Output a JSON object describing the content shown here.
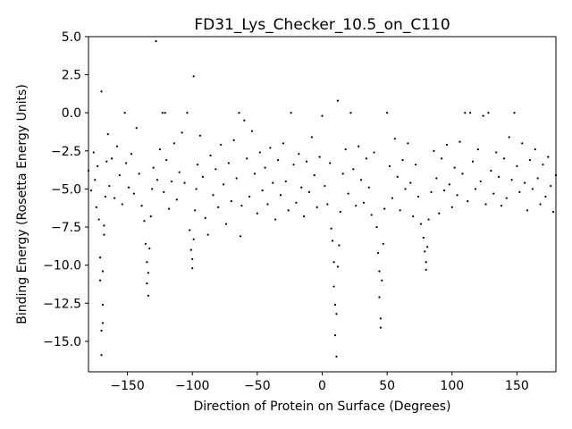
{
  "chart_data": {
    "type": "scatter",
    "title": "FD31_Lys_Checker_10.5_on_C110",
    "xlabel": "Direction of Protein on Surface (Degrees)",
    "ylabel": "Binding Energy (Rosetta Energy Units)",
    "xlim": [
      -180,
      180
    ],
    "ylim": [
      -17,
      5
    ],
    "xticks": [
      -150,
      -100,
      -50,
      0,
      50,
      100,
      150
    ],
    "xtick_labels": [
      "−150",
      "−100",
      "−50",
      "0",
      "50",
      "100",
      "150"
    ],
    "yticks": [
      5.0,
      2.5,
      0.0,
      -2.5,
      -5.0,
      -7.5,
      -10.0,
      -12.5,
      -15.0
    ],
    "ytick_labels": [
      "5.0",
      "2.5",
      "0.0",
      "−2.5",
      "−5.0",
      "−7.5",
      "−10.0",
      "−12.5",
      "−15.0"
    ],
    "grid": false,
    "marker_color": "#000000",
    "series": [
      {
        "points": [
          [
            -180,
            -3.8
          ],
          [
            -178,
            -5.1
          ],
          [
            -176,
            -2.6
          ],
          [
            -175,
            -4.4
          ],
          [
            -174,
            -6.2
          ],
          [
            -173,
            -3.5
          ],
          [
            -172,
            -7.0
          ],
          [
            -171,
            -9.5
          ],
          [
            -171,
            -11.0
          ],
          [
            -170,
            -14.3
          ],
          [
            -170,
            -15.9
          ],
          [
            -170,
            1.4
          ],
          [
            -169,
            -12.6
          ],
          [
            -169,
            -13.8
          ],
          [
            -169,
            -10.4
          ],
          [
            -168,
            -8.0
          ],
          [
            -168,
            -7.4
          ],
          [
            -167,
            -5.5
          ],
          [
            -166,
            -3.2
          ],
          [
            -165,
            -1.4
          ],
          [
            -164,
            -4.8
          ],
          [
            -162,
            -3.0
          ],
          [
            -160,
            -5.6
          ],
          [
            -158,
            -2.2
          ],
          [
            -156,
            -4.1
          ],
          [
            -154,
            -6.0
          ],
          [
            -152,
            0.0
          ],
          [
            -151,
            -3.3
          ],
          [
            -149,
            -4.9
          ],
          [
            -147,
            -2.7
          ],
          [
            -145,
            -5.3
          ],
          [
            -143,
            -1.0
          ],
          [
            -141,
            -4.0
          ],
          [
            -139,
            -6.1
          ],
          [
            -137,
            -7.1
          ],
          [
            -136,
            -8.6
          ],
          [
            -135,
            -9.8
          ],
          [
            -135,
            -11.2
          ],
          [
            -134,
            -12.0
          ],
          [
            -134,
            -10.5
          ],
          [
            -133,
            -8.9
          ],
          [
            -132,
            -6.8
          ],
          [
            -131,
            -5.0
          ],
          [
            -130,
            -3.6
          ],
          [
            -128,
            4.7
          ],
          [
            -127,
            -4.4
          ],
          [
            -125,
            -2.4
          ],
          [
            -123,
            0.0
          ],
          [
            -122,
            -5.2
          ],
          [
            -121,
            0.0
          ],
          [
            -120,
            -3.1
          ],
          [
            -118,
            -6.3
          ],
          [
            -116,
            -4.5
          ],
          [
            -114,
            -2.0
          ],
          [
            -112,
            -5.7
          ],
          [
            -110,
            -3.9
          ],
          [
            -108,
            -1.3
          ],
          [
            -106,
            -4.6
          ],
          [
            -104,
            0.0
          ],
          [
            -102,
            -7.7
          ],
          [
            -101,
            -9.0
          ],
          [
            -100,
            -10.2
          ],
          [
            -100,
            -9.6
          ],
          [
            -99,
            -8.3
          ],
          [
            -99,
            2.4
          ],
          [
            -98,
            -6.4
          ],
          [
            -97,
            -5.0
          ],
          [
            -96,
            -3.4
          ],
          [
            -94,
            -1.5
          ],
          [
            -92,
            -4.2
          ],
          [
            -90,
            -6.9
          ],
          [
            -88,
            -8.0
          ],
          [
            -86,
            -2.8
          ],
          [
            -84,
            -5.4
          ],
          [
            -82,
            -3.7
          ],
          [
            -80,
            -6.2
          ],
          [
            -78,
            -2.1
          ],
          [
            -76,
            -4.7
          ],
          [
            -74,
            -7.3
          ],
          [
            -72,
            -3.3
          ],
          [
            -70,
            -5.8
          ],
          [
            -68,
            -1.8
          ],
          [
            -66,
            -4.3
          ],
          [
            -64,
            0.0
          ],
          [
            -63,
            -8.1
          ],
          [
            -62,
            -6.1
          ],
          [
            -60,
            -0.5
          ],
          [
            -58,
            -3.0
          ],
          [
            -56,
            -5.5
          ],
          [
            -54,
            -1.2
          ],
          [
            -52,
            -4.0
          ],
          [
            -50,
            -6.6
          ],
          [
            -48,
            -2.6
          ],
          [
            -46,
            -5.1
          ],
          [
            -44,
            -3.6
          ],
          [
            -42,
            -6.0
          ],
          [
            -40,
            -2.3
          ],
          [
            -38,
            -4.6
          ],
          [
            -36,
            -7.0
          ],
          [
            -34,
            -3.1
          ],
          [
            -32,
            -5.4
          ],
          [
            -30,
            -2.0
          ],
          [
            -28,
            -4.5
          ],
          [
            -26,
            -6.4
          ],
          [
            -24,
            0.0
          ],
          [
            -22,
            -3.4
          ],
          [
            -20,
            -5.9
          ],
          [
            -18,
            -2.7
          ],
          [
            -16,
            -4.9
          ],
          [
            -14,
            -6.8
          ],
          [
            -12,
            -3.2
          ],
          [
            -10,
            -5.2
          ],
          [
            -8,
            -1.6
          ],
          [
            -6,
            -4.1
          ],
          [
            -4,
            -6.2
          ],
          [
            -2,
            -2.9
          ],
          [
            0,
            -0.2
          ],
          [
            2,
            -4.8
          ],
          [
            4,
            -6.0
          ],
          [
            6,
            -3.3
          ],
          [
            7,
            -7.6
          ],
          [
            8,
            -8.4
          ],
          [
            9,
            -9.8
          ],
          [
            9,
            -11.4
          ],
          [
            10,
            -12.6
          ],
          [
            10,
            -14.6
          ],
          [
            11,
            -16.0
          ],
          [
            11,
            -13.2
          ],
          [
            12,
            0.8
          ],
          [
            12,
            -10.1
          ],
          [
            13,
            -8.7
          ],
          [
            14,
            -6.5
          ],
          [
            16,
            -4.0
          ],
          [
            18,
            -2.4
          ],
          [
            20,
            -5.3
          ],
          [
            22,
            0.0
          ],
          [
            24,
            -3.7
          ],
          [
            26,
            -6.1
          ],
          [
            28,
            -2.2
          ],
          [
            30,
            -4.4
          ],
          [
            32,
            -5.9
          ],
          [
            34,
            -3.0
          ],
          [
            36,
            -4.9
          ],
          [
            38,
            -6.7
          ],
          [
            40,
            -2.6
          ],
          [
            42,
            -7.5
          ],
          [
            43,
            -9.2
          ],
          [
            44,
            -10.4
          ],
          [
            44,
            -12.1
          ],
          [
            45,
            -13.5
          ],
          [
            45,
            -14.1
          ],
          [
            46,
            -11.0
          ],
          [
            47,
            -8.6
          ],
          [
            48,
            -6.3
          ],
          [
            50,
            0.0
          ],
          [
            52,
            -3.5
          ],
          [
            54,
            -5.6
          ],
          [
            56,
            -1.7
          ],
          [
            58,
            -4.2
          ],
          [
            60,
            -6.4
          ],
          [
            62,
            -3.1
          ],
          [
            64,
            -5.0
          ],
          [
            66,
            -2.0
          ],
          [
            68,
            -4.6
          ],
          [
            70,
            -6.8
          ],
          [
            72,
            -3.4
          ],
          [
            74,
            -5.5
          ],
          [
            76,
            -7.3
          ],
          [
            78,
            -8.2
          ],
          [
            79,
            -9.1
          ],
          [
            80,
            -9.8
          ],
          [
            80,
            -10.3
          ],
          [
            81,
            -8.8
          ],
          [
            82,
            -7.0
          ],
          [
            84,
            -5.2
          ],
          [
            86,
            -2.5
          ],
          [
            88,
            -4.3
          ],
          [
            90,
            -6.6
          ],
          [
            92,
            -3.0
          ],
          [
            94,
            -5.1
          ],
          [
            96,
            -2.1
          ],
          [
            98,
            -4.7
          ],
          [
            100,
            -6.2
          ],
          [
            102,
            -3.6
          ],
          [
            104,
            -5.4
          ],
          [
            106,
            -1.9
          ],
          [
            108,
            -4.0
          ],
          [
            110,
            0.0
          ],
          [
            112,
            -5.8
          ],
          [
            114,
            0.0
          ],
          [
            116,
            -3.2
          ],
          [
            118,
            -5.0
          ],
          [
            120,
            -2.4
          ],
          [
            122,
            -4.5
          ],
          [
            124,
            -0.2
          ],
          [
            126,
            -6.0
          ],
          [
            128,
            0.0
          ],
          [
            130,
            -3.8
          ],
          [
            132,
            -5.3
          ],
          [
            134,
            -2.6
          ],
          [
            136,
            -4.2
          ],
          [
            138,
            -6.1
          ],
          [
            140,
            -3.0
          ],
          [
            142,
            -5.6
          ],
          [
            144,
            -1.6
          ],
          [
            146,
            -4.4
          ],
          [
            148,
            0.0
          ],
          [
            150,
            -3.5
          ],
          [
            152,
            -5.2
          ],
          [
            154,
            -2.0
          ],
          [
            156,
            -4.6
          ],
          [
            158,
            -6.4
          ],
          [
            160,
            -3.1
          ],
          [
            162,
            -5.0
          ],
          [
            164,
            -2.4
          ],
          [
            166,
            -4.3
          ],
          [
            168,
            -6.0
          ],
          [
            170,
            -3.4
          ],
          [
            172,
            -5.5
          ],
          [
            174,
            -2.9
          ],
          [
            176,
            -4.8
          ],
          [
            178,
            -6.5
          ],
          [
            180,
            -4.1
          ]
        ]
      }
    ]
  }
}
